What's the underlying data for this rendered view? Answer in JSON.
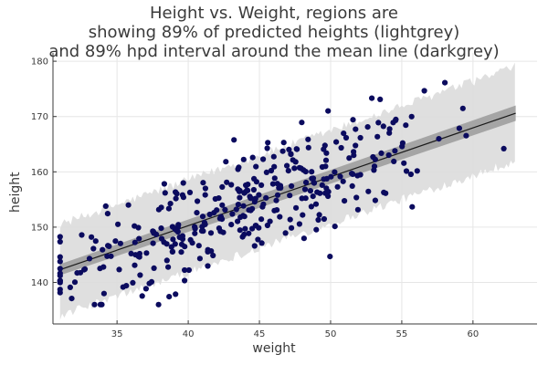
{
  "chart_data": {
    "type": "scatter",
    "title_lines": [
      "Height vs. Weight, regions are",
      "showing 89% of predicted heights (lightgrey)",
      "and 89% hpd interval around the mean line (darkgrey)"
    ],
    "xlabel": "weight",
    "ylabel": "height",
    "xlim": [
      30.5,
      64.5
    ],
    "ylim": [
      132.5,
      181.5
    ],
    "xticks": [
      35,
      40,
      45,
      50,
      55,
      60
    ],
    "yticks": [
      140,
      150,
      160,
      170,
      180
    ],
    "grid": true,
    "colors": {
      "points": "#0b0b5e",
      "mean_line": "#1a1a1a",
      "hpd_band": "#9f9f9f",
      "prediction_band": "#dcdcdc"
    },
    "mean_line": {
      "x": [
        31.0,
        63.0
      ],
      "y": [
        142.3,
        170.6
      ]
    },
    "hpd_band": {
      "x": [
        31.0,
        63.0
      ],
      "lower": [
        141.3,
        169.2
      ],
      "upper": [
        143.3,
        172.0
      ]
    },
    "prediction_band": {
      "x": [
        31.0,
        63.0
      ],
      "lower": [
        134.0,
        162.0
      ],
      "upper": [
        150.5,
        179.0
      ]
    },
    "points_seed": 12345,
    "n_points": 352
  }
}
